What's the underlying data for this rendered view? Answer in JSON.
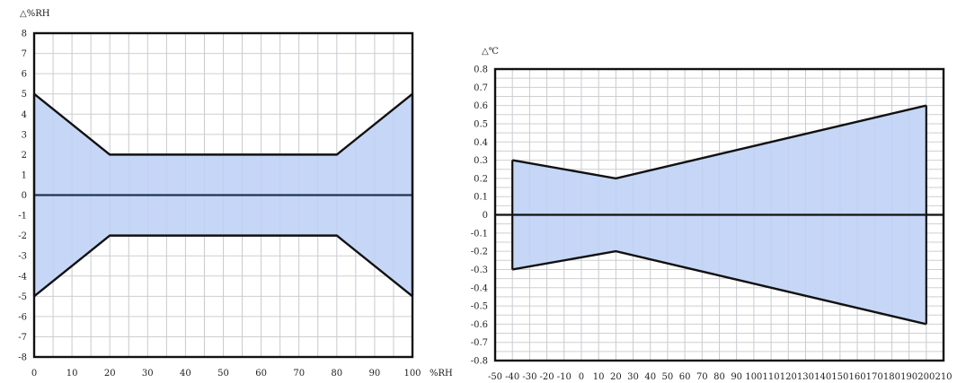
{
  "chart_data": [
    {
      "type": "area",
      "ylabel": "△%RH",
      "xlabel": "%RH",
      "xlim": [
        0,
        100
      ],
      "ylim": [
        -8,
        8
      ],
      "x_ticks": [
        0,
        10,
        20,
        30,
        40,
        50,
        60,
        70,
        80,
        90,
        100
      ],
      "y_ticks": [
        8,
        7,
        6,
        5,
        4,
        3,
        2,
        1,
        0,
        -1,
        -2,
        -3,
        -4,
        -5,
        -6,
        -7,
        -8
      ],
      "grid": true,
      "series": [
        {
          "values": [
            [
              0,
              5
            ],
            [
              20,
              2
            ],
            [
              80,
              2
            ],
            [
              100,
              5
            ]
          ]
        },
        {
          "values": [
            [
              0,
              -5
            ],
            [
              20,
              -2
            ],
            [
              80,
              -2
            ],
            [
              100,
              -5
            ]
          ]
        }
      ],
      "fill_color": "#c6d6f7",
      "line_color": "#111111",
      "zero_line_color": "#1f3550"
    },
    {
      "type": "area",
      "ylabel": "△℃",
      "xlabel": "",
      "xlim": [
        -50,
        210
      ],
      "ylim": [
        -0.8,
        0.8
      ],
      "x_ticks": [
        -50,
        -40,
        -30,
        -20,
        -10,
        0,
        10,
        20,
        30,
        40,
        50,
        60,
        70,
        80,
        90,
        100,
        110,
        120,
        130,
        140,
        150,
        160,
        170,
        180,
        190,
        200,
        210
      ],
      "y_ticks": [
        0.8,
        0.7,
        0.6,
        0.5,
        0.4,
        0.3,
        0.2,
        0.1,
        0,
        -0.1,
        -0.2,
        -0.3,
        -0.4,
        -0.5,
        -0.6,
        -0.7,
        -0.8
      ],
      "grid": true,
      "series": [
        {
          "values": [
            [
              -40,
              0.3
            ],
            [
              20,
              0.2
            ],
            [
              200,
              0.6
            ]
          ]
        },
        {
          "values": [
            [
              -40,
              -0.3
            ],
            [
              20,
              -0.2
            ],
            [
              200,
              -0.6
            ]
          ]
        }
      ],
      "fill_color": "#c6d6f7",
      "line_color": "#111111",
      "zero_line_color": "#111111"
    }
  ]
}
